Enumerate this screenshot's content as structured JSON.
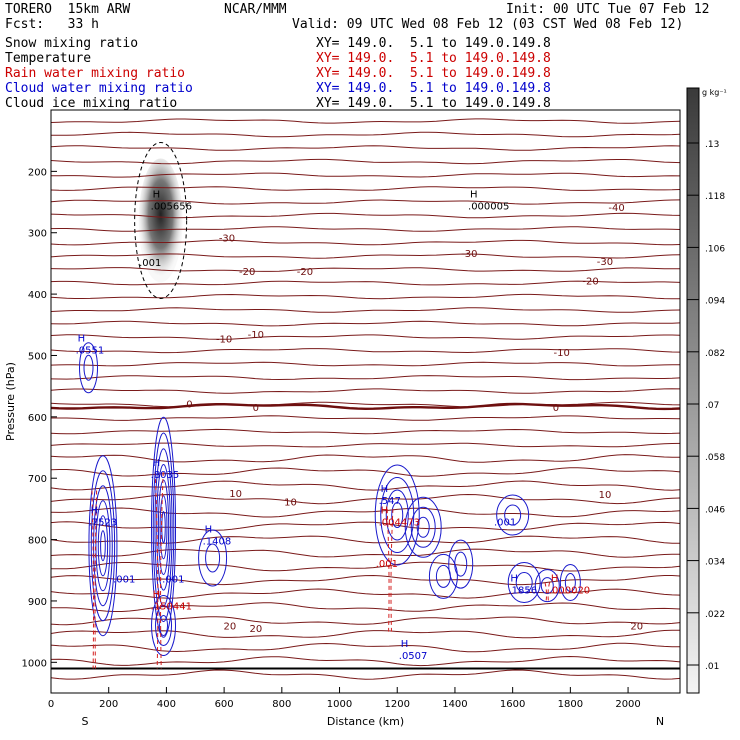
{
  "header": {
    "model": "TORERO  15km ARW",
    "center": "NCAR/MMM",
    "init": "Init: 00 UTC Tue 07 Feb 12",
    "fcst": "Fcst:   33 h",
    "valid": "Valid: 09 UTC Wed 08 Feb 12 (03 CST Wed 08 Feb 12)"
  },
  "legend": [
    {
      "name": "Snow mixing ratio",
      "color": "#000000",
      "xy": ""
    },
    {
      "name": "Temperature",
      "color": "#000000",
      "xy": "XY= 149.0.  5.1 to 149.0.149.8"
    },
    {
      "name": "Rain water mixing ratio",
      "color": "#cc0000",
      "xy": "XY= 149.0.  5.1 to 149.0.149.8"
    },
    {
      "name": "Cloud water mixing ratio",
      "color": "#0000cc",
      "xy": "XY= 149.0.  5.1 to 149.0.149.8"
    },
    {
      "name": "Cloud ice mixing ratio",
      "color": "#000000",
      "xy": "XY= 149.0.  5.1 to 149.0.149.8"
    }
  ],
  "xy_top": "XY= 149.0.  5.1 to 149.0.149.8",
  "chart_data": {
    "type": "contour",
    "xlabel": "Distance (km)",
    "ylabel": "Pressure (hPa)",
    "xlim": [
      0,
      2180
    ],
    "ylim": [
      1050,
      100
    ],
    "x_ticks": [
      0,
      200,
      400,
      600,
      800,
      1000,
      1200,
      1400,
      1600,
      1800,
      2000
    ],
    "y_ticks": [
      200,
      300,
      400,
      500,
      600,
      700,
      800,
      900,
      1000
    ],
    "x_ends": {
      "left": "S",
      "right": "N"
    },
    "colorbar": {
      "unit": "g kg⁻¹",
      "labels": [
        ".13",
        ".118",
        ".106",
        ".094",
        ".082",
        ".07",
        ".058",
        ".046",
        ".034",
        ".022",
        ".01"
      ]
    },
    "temperature_labels": [
      {
        "text": "-40",
        "x": 1960,
        "p": 258
      },
      {
        "text": "-30",
        "x": 610,
        "p": 308
      },
      {
        "text": "-30",
        "x": 1450,
        "p": 333
      },
      {
        "text": "-30",
        "x": 1920,
        "p": 346
      },
      {
        "text": "-20",
        "x": 680,
        "p": 362
      },
      {
        "text": "-20",
        "x": 880,
        "p": 362
      },
      {
        "text": "-20",
        "x": 1870,
        "p": 378
      },
      {
        "text": "-10",
        "x": 600,
        "p": 472
      },
      {
        "text": "-10",
        "x": 710,
        "p": 465
      },
      {
        "text": "-10",
        "x": 1770,
        "p": 494
      },
      {
        "text": "0",
        "x": 480,
        "p": 578
      },
      {
        "text": "0",
        "x": 710,
        "p": 584
      },
      {
        "text": "0",
        "x": 1750,
        "p": 584
      },
      {
        "text": "10",
        "x": 640,
        "p": 724
      },
      {
        "text": "10",
        "x": 830,
        "p": 738
      },
      {
        "text": "10",
        "x": 1920,
        "p": 726
      },
      {
        "text": "20",
        "x": 620,
        "p": 940
      },
      {
        "text": "20",
        "x": 710,
        "p": 944
      },
      {
        "text": "20",
        "x": 2030,
        "p": 940
      }
    ],
    "max_labels": [
      {
        "h": "H",
        "value": ".005656",
        "x": 380,
        "p": 262,
        "color": "#000000"
      },
      {
        "h": "H",
        "value": ".000005",
        "x": 1480,
        "p": 262,
        "color": "#000000"
      },
      {
        "h": "",
        "value": ".001",
        "x": 340,
        "p": 354,
        "color": "#000000"
      },
      {
        "h": "H",
        "value": ".0551",
        "x": 120,
        "p": 497,
        "color": "#0000cc"
      },
      {
        "h": "H",
        "value": ".8035",
        "x": 380,
        "p": 700,
        "color": "#0000cc"
      },
      {
        "h": "H",
        "value": ".7523",
        "x": 165,
        "p": 777,
        "color": "#0000cc"
      },
      {
        "h": "",
        "value": ".001",
        "x": 250,
        "p": 870,
        "color": "#0000cc"
      },
      {
        "h": "",
        "value": ".001",
        "x": 420,
        "p": 870,
        "color": "#0000cc"
      },
      {
        "h": "H",
        "value": ".1408",
        "x": 560,
        "p": 808,
        "color": "#0000cc"
      },
      {
        "h": "H",
        "value": ".547",
        "x": 1170,
        "p": 742,
        "color": "#0000cc"
      },
      {
        "h": "",
        "value": ".001",
        "x": 1570,
        "p": 777,
        "color": "#0000cc"
      },
      {
        "h": "H",
        "value": ".1856",
        "x": 1620,
        "p": 888,
        "color": "#0000cc"
      },
      {
        "h": "H",
        "value": ".0507",
        "x": 1240,
        "p": 995,
        "color": "#0000cc"
      },
      {
        "h": "H",
        "value": ".004473",
        "x": 1170,
        "p": 777,
        "color": "#cc0000"
      },
      {
        "h": "",
        "value": ".001",
        "x": 1160,
        "p": 845,
        "color": "#cc0000"
      },
      {
        "h": "H",
        "value": ".150441",
        "x": 380,
        "p": 914,
        "color": "#cc0000"
      },
      {
        "h": "H",
        "value": ".000020",
        "x": 1760,
        "p": 888,
        "color": "#cc0000"
      }
    ]
  }
}
